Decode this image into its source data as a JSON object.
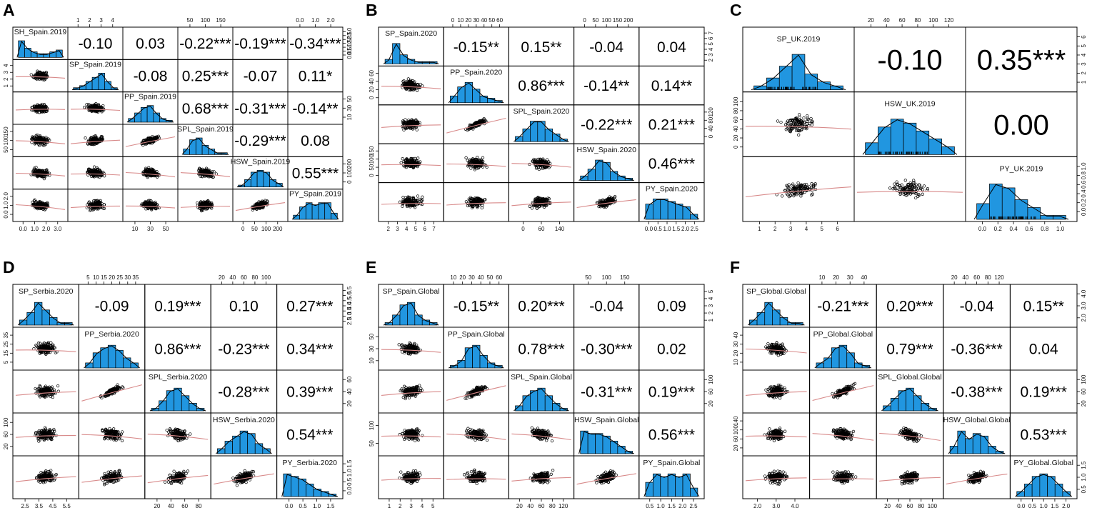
{
  "chart_data": [
    {
      "panel": "A",
      "type": "scatter_matrix",
      "variables": [
        "SH_Spain.2019",
        "SP_Spain.2019",
        "PP_Spain.2019",
        "SPL_Spain.2019",
        "HSW_Spain.2019",
        "PY_Spain.2019"
      ],
      "correlations": [
        [
          "-0.10",
          "0.03",
          "-0.22***",
          "-0.19***",
          "-0.34***"
        ],
        [
          "-0.08",
          "0.25***",
          "-0.07",
          "0.11*"
        ],
        [
          "0.68***",
          "-0.31***",
          "-0.14**"
        ],
        [
          "-0.29***",
          "0.08"
        ],
        [
          "0.55***"
        ]
      ],
      "top_ticks": [
        null,
        [
          "1",
          "2",
          "3",
          "4"
        ],
        null,
        [
          "50",
          "100",
          "150"
        ],
        null,
        [
          "0.0",
          "1.0",
          "2.0"
        ]
      ],
      "bottom_ticks": [
        [
          "0.0",
          "1.0",
          "2.0",
          "3.0"
        ],
        null,
        [
          "10",
          "30",
          "50"
        ],
        null,
        [
          "0",
          "50",
          "100",
          "200"
        ],
        null
      ],
      "left_ticks": [
        null,
        [
          "1",
          "2",
          "3",
          "4"
        ],
        null,
        [
          "50",
          "100",
          "150"
        ],
        null,
        [
          "0.0",
          "1.0",
          "2.0"
        ]
      ],
      "right_ticks": [
        [
          "0.0",
          "0.5",
          "1.0",
          "1.5",
          "2.0",
          "2.5",
          "3.0"
        ],
        null,
        [
          "10",
          "30",
          "50"
        ],
        null,
        [
          "0",
          "100",
          "200"
        ],
        null
      ],
      "histograms": [
        [
          9,
          5,
          3,
          2,
          2,
          3,
          4
        ],
        [
          1,
          2,
          4,
          6,
          8,
          4,
          1
        ],
        [
          2,
          5,
          8,
          9,
          5,
          2,
          1
        ],
        [
          3,
          8,
          9,
          5,
          3,
          1,
          1
        ],
        [
          1,
          4,
          8,
          9,
          8,
          4,
          2
        ],
        [
          2,
          6,
          8,
          7,
          8,
          8,
          3
        ]
      ]
    },
    {
      "panel": "B",
      "type": "scatter_matrix",
      "variables": [
        "SP_Spain.2020",
        "PP_Spain.2020",
        "SPL_Spain.2020",
        "HSW_Spain.2020",
        "PY_Spain.2020"
      ],
      "correlations": [
        [
          "-0.15**",
          "0.15**",
          "-0.04",
          "0.04"
        ],
        [
          "0.86***",
          "-0.14**",
          "0.14**"
        ],
        [
          "-0.22***",
          "0.21***"
        ],
        [
          "0.46***"
        ]
      ],
      "top_ticks": [
        null,
        [
          "0",
          "10",
          "20",
          "30",
          "40",
          "50",
          "60"
        ],
        null,
        [
          "0",
          "50",
          "100",
          "150",
          "200"
        ],
        null
      ],
      "bottom_ticks": [
        [
          "2",
          "3",
          "4",
          "5",
          "6",
          "7"
        ],
        null,
        [
          "0",
          "60",
          "140"
        ],
        null,
        [
          "0.0",
          "0.5",
          "1.0",
          "1.5",
          "2.0",
          "2.5"
        ]
      ],
      "left_ticks": [
        null,
        [
          "0",
          "20",
          "40",
          "60"
        ],
        null,
        [
          "0",
          "50",
          "100",
          "150"
        ],
        null
      ],
      "right_ticks": [
        [
          "2",
          "3",
          "4",
          "5",
          "6",
          "7"
        ],
        null,
        [
          "0",
          "40",
          "80",
          "120"
        ],
        null,
        null
      ],
      "histograms": [
        [
          2,
          9,
          4,
          2,
          1,
          1,
          1
        ],
        [
          3,
          7,
          9,
          6,
          3,
          2,
          1
        ],
        [
          2,
          5,
          8,
          8,
          5,
          3,
          1
        ],
        [
          2,
          5,
          9,
          8,
          4,
          2,
          1
        ],
        [
          6,
          8,
          8,
          7,
          6,
          5,
          2
        ]
      ]
    },
    {
      "panel": "C",
      "type": "scatter_matrix",
      "variables": [
        "SP_UK.2019",
        "HSW_UK.2019",
        "PY_UK.2019"
      ],
      "correlations": [
        [
          "-0.10",
          "0.35***"
        ],
        [
          "0.00"
        ]
      ],
      "top_ticks": [
        null,
        [
          "20",
          "40",
          "60",
          "80",
          "100",
          "120"
        ],
        null
      ],
      "bottom_ticks": [
        [
          "1",
          "2",
          "3",
          "4",
          "5",
          "6"
        ],
        null,
        [
          "0.0",
          "0.2",
          "0.4",
          "0.6",
          "0.8",
          "1.0"
        ]
      ],
      "left_ticks": [
        null,
        [
          "0",
          "20",
          "40",
          "60",
          "80",
          "100"
        ],
        null
      ],
      "right_ticks": [
        [
          "1",
          "2",
          "3",
          "4",
          "5",
          "6"
        ],
        null,
        [
          "0.0",
          "0.2",
          "0.4",
          "0.6",
          "0.8",
          "1.0"
        ]
      ],
      "histograms": [
        [
          1,
          3,
          6,
          9,
          4,
          2,
          1
        ],
        [
          3,
          7,
          9,
          8,
          6,
          4,
          2
        ],
        [
          4,
          9,
          8,
          5,
          3,
          1,
          1
        ]
      ]
    },
    {
      "panel": "D",
      "type": "scatter_matrix",
      "variables": [
        "SP_Serbia.2020",
        "PP_Serbia.2020",
        "SPL_Serbia.2020",
        "HSW_Serbia.2020",
        "PY_Serbia.2020"
      ],
      "correlations": [
        [
          "-0.09",
          "0.19***",
          "0.10",
          "0.27***"
        ],
        [
          "0.86***",
          "-0.23***",
          "0.34***"
        ],
        [
          "-0.28***",
          "0.39***"
        ],
        [
          "0.54***"
        ]
      ],
      "top_ticks": [
        null,
        [
          "5",
          "10",
          "15",
          "20",
          "25",
          "30",
          "35"
        ],
        null,
        [
          "20",
          "40",
          "60",
          "80",
          "100"
        ],
        null
      ],
      "bottom_ticks": [
        [
          "2.5",
          "3.5",
          "4.5",
          "5.5"
        ],
        null,
        [
          "20",
          "40",
          "60",
          "80"
        ],
        null,
        [
          "0.0",
          "0.5",
          "1.0",
          "1.5"
        ]
      ],
      "left_ticks": [
        null,
        [
          "5",
          "15",
          "25",
          "35"
        ],
        null,
        [
          "20",
          "60",
          "100"
        ],
        null
      ],
      "right_ticks": [
        [
          "2.5",
          "3.0",
          "3.5",
          "4.0",
          "4.5",
          "5.0",
          "5.5"
        ],
        null,
        [
          "20",
          "40",
          "60"
        ],
        null,
        [
          "0.0",
          "0.5",
          "1.0",
          "1.5"
        ]
      ],
      "histograms": [
        [
          2,
          5,
          9,
          6,
          3,
          1,
          1
        ],
        [
          2,
          6,
          8,
          9,
          7,
          4,
          2
        ],
        [
          1,
          4,
          8,
          9,
          6,
          3,
          1
        ],
        [
          2,
          5,
          7,
          9,
          8,
          4,
          2
        ],
        [
          9,
          8,
          7,
          5,
          3,
          2,
          1
        ]
      ]
    },
    {
      "panel": "E",
      "type": "scatter_matrix",
      "variables": [
        "SP_Spain.Global",
        "PP_Spain.Global",
        "SPL_Spain.Global",
        "HSW_Spain.Global",
        "PY_Spain.Global"
      ],
      "correlations": [
        [
          "-0.15**",
          "0.20***",
          "-0.04",
          "0.09"
        ],
        [
          "0.78***",
          "-0.30***",
          "0.02"
        ],
        [
          "-0.31***",
          "0.19***"
        ],
        [
          "0.56***"
        ]
      ],
      "top_ticks": [
        null,
        [
          "10",
          "20",
          "30",
          "40",
          "50",
          "60"
        ],
        null,
        [
          "50",
          "100",
          "150"
        ],
        null
      ],
      "bottom_ticks": [
        [
          "1",
          "2",
          "3",
          "4",
          "5"
        ],
        null,
        [
          "20",
          "40",
          "60",
          "80",
          "120"
        ],
        null,
        [
          "0.5",
          "1.0",
          "1.5",
          "2.0",
          "2.5"
        ]
      ],
      "left_ticks": [
        null,
        [
          "10",
          "30",
          "50"
        ],
        null,
        [
          "50",
          "100"
        ],
        null
      ],
      "right_ticks": [
        [
          "1",
          "2",
          "3",
          "4",
          "5"
        ],
        null,
        [
          "20",
          "60",
          "100"
        ],
        null,
        null
      ],
      "histograms": [
        [
          1,
          4,
          8,
          9,
          4,
          2,
          1
        ],
        [
          1,
          3,
          8,
          9,
          5,
          2,
          1
        ],
        [
          2,
          6,
          8,
          9,
          6,
          3,
          1
        ],
        [
          9,
          8,
          8,
          7,
          5,
          3,
          1
        ],
        [
          5,
          8,
          7,
          8,
          7,
          8,
          3
        ]
      ]
    },
    {
      "panel": "F",
      "type": "scatter_matrix",
      "variables": [
        "SP_Global.Global",
        "PP_Global.Global",
        "SPL_Global.Global",
        "HSW_Global.Global",
        "PY_Global.Global"
      ],
      "correlations": [
        [
          "-0.21***",
          "0.20***",
          "-0.04",
          "0.15**"
        ],
        [
          "0.79***",
          "-0.36***",
          "0.04"
        ],
        [
          "-0.38***",
          "0.19***"
        ],
        [
          "0.53***"
        ]
      ],
      "top_ticks": [
        null,
        [
          "10",
          "20",
          "30",
          "40"
        ],
        null,
        [
          "20",
          "40",
          "60",
          "80",
          "120"
        ],
        null
      ],
      "bottom_ticks": [
        [
          "2.0",
          "3.0",
          "4.0"
        ],
        null,
        [
          "20",
          "40",
          "60",
          "80",
          "100"
        ],
        null,
        [
          "0.0",
          "0.5",
          "1.0",
          "1.5",
          "2.0"
        ]
      ],
      "left_ticks": [
        null,
        [
          "10",
          "20",
          "30",
          "40"
        ],
        null,
        [
          "20",
          "60",
          "100",
          "140"
        ],
        null
      ],
      "right_ticks": [
        [
          "2.0",
          "3.0",
          "4.0"
        ],
        null,
        [
          "20",
          "60",
          "100"
        ],
        null,
        [
          "0.5",
          "1.0",
          "1.5"
        ]
      ],
      "histograms": [
        [
          2,
          5,
          9,
          6,
          3,
          1,
          1
        ],
        [
          2,
          4,
          8,
          9,
          6,
          2,
          1
        ],
        [
          2,
          5,
          8,
          9,
          6,
          3,
          1
        ],
        [
          3,
          9,
          6,
          8,
          7,
          3,
          1
        ],
        [
          2,
          5,
          8,
          9,
          8,
          5,
          2
        ]
      ]
    }
  ]
}
